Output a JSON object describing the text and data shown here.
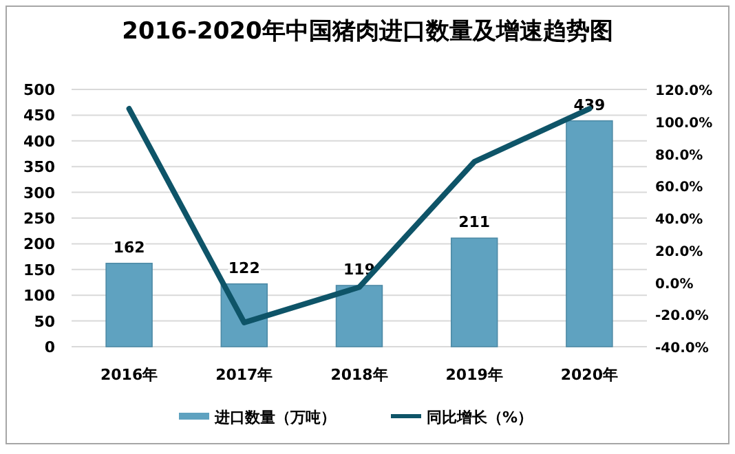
{
  "chart_data": {
    "type": "bar",
    "title": "2016-2020年中国猪肉进口数量及增速趋势图",
    "categories": [
      "2016年",
      "2017年",
      "2018年",
      "2019年",
      "2020年"
    ],
    "series": [
      {
        "name": "进口数量（万吨）",
        "color": "#5fa2c0",
        "values": [
          162,
          122,
          119,
          211,
          439
        ],
        "value_labels": [
          "162",
          "122",
          "119",
          "211",
          "439"
        ]
      },
      {
        "name": "同比增长（%）",
        "type": "line",
        "axis": "y2",
        "color": "#0e5468",
        "values": [
          108,
          -25,
          -3,
          75,
          108
        ]
      }
    ],
    "ylim": [
      0,
      500
    ],
    "yticks": [
      0,
      50,
      100,
      150,
      200,
      250,
      300,
      350,
      400,
      450,
      500
    ],
    "y2lim": [
      -40,
      120
    ],
    "y2ticks": [
      {
        "value": -40,
        "label": "-40.0%"
      },
      {
        "value": -20,
        "label": "-20.0%"
      },
      {
        "value": 0,
        "label": "0.0%"
      },
      {
        "value": 20,
        "label": "20.0%"
      },
      {
        "value": 40,
        "label": "40.0%"
      },
      {
        "value": 60,
        "label": "60.0%"
      },
      {
        "value": 80,
        "label": "80.0%"
      },
      {
        "value": 100,
        "label": "100.0%"
      },
      {
        "value": 120,
        "label": "120.0%"
      }
    ],
    "grid": "y",
    "legend": "bottom",
    "marker": "none"
  }
}
